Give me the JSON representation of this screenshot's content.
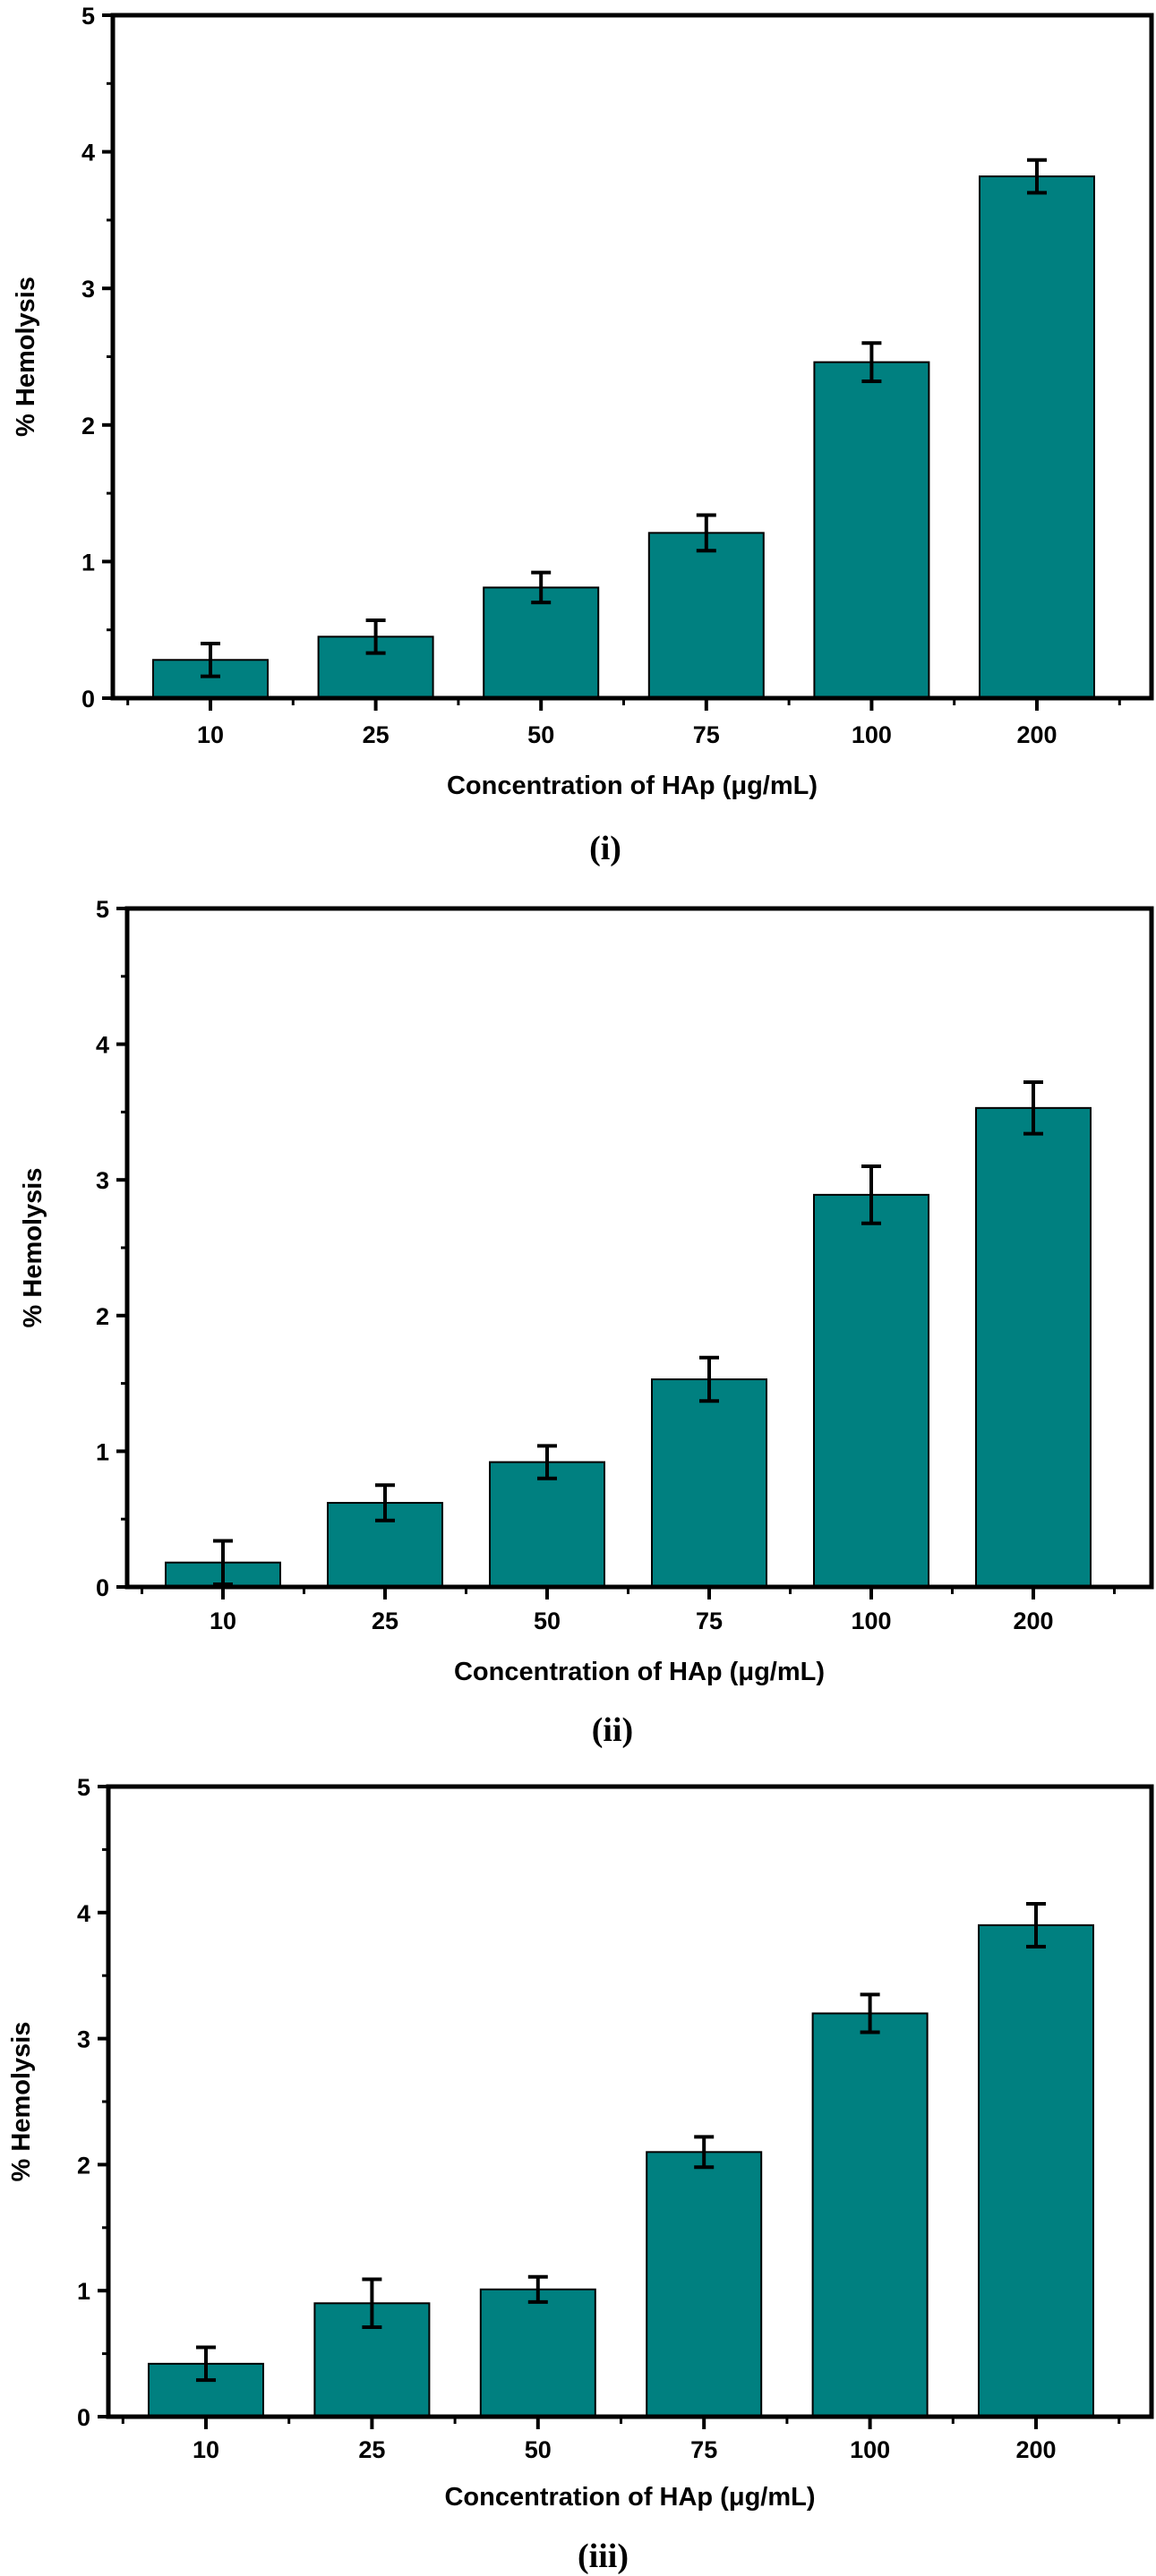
{
  "chart_data": [
    {
      "type": "bar",
      "panel_label": "(i)",
      "xlabel": "Concentration of HAp (μg/mL)",
      "ylabel": "% Hemolysis",
      "categories": [
        "10",
        "25",
        "50",
        "75",
        "100",
        "200"
      ],
      "values": [
        0.28,
        0.45,
        0.81,
        1.21,
        2.46,
        3.82
      ],
      "errors": [
        0.12,
        0.12,
        0.11,
        0.13,
        0.14,
        0.12
      ],
      "ylim": [
        0,
        5
      ],
      "yticks": [
        "0",
        "1",
        "2",
        "3",
        "4",
        "5"
      ],
      "bar_color": "#008080"
    },
    {
      "type": "bar",
      "panel_label": "(ii)",
      "xlabel": "Concentration of HAp (μg/mL)",
      "ylabel": "% Hemolysis",
      "categories": [
        "10",
        "25",
        "50",
        "75",
        "100",
        "200"
      ],
      "values": [
        0.18,
        0.62,
        0.92,
        1.53,
        2.89,
        3.53
      ],
      "errors": [
        0.16,
        0.13,
        0.12,
        0.16,
        0.21,
        0.19
      ],
      "ylim": [
        0,
        5
      ],
      "yticks": [
        "0",
        "1",
        "2",
        "3",
        "4",
        "5"
      ],
      "bar_color": "#008080"
    },
    {
      "type": "bar",
      "panel_label": "(iii)",
      "xlabel": "Concentration of HAp (μg/mL)",
      "ylabel": "% Hemolysis",
      "categories": [
        "10",
        "25",
        "50",
        "75",
        "100",
        "200"
      ],
      "values": [
        0.42,
        0.9,
        1.01,
        2.1,
        3.2,
        3.9
      ],
      "errors": [
        0.13,
        0.19,
        0.1,
        0.12,
        0.15,
        0.17
      ],
      "ylim": [
        0,
        5
      ],
      "yticks": [
        "0",
        "1",
        "2",
        "3",
        "4",
        "5"
      ],
      "bar_color": "#008080"
    }
  ]
}
